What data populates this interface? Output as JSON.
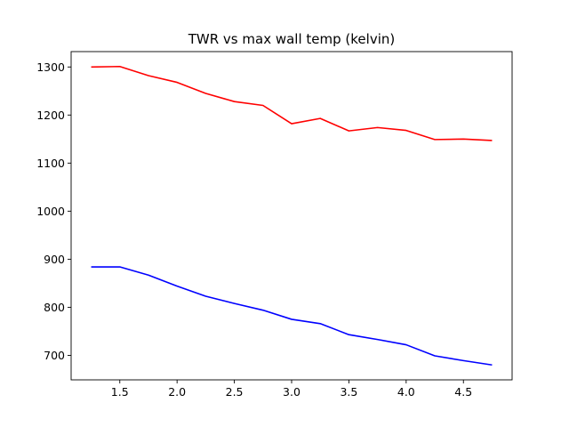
{
  "chart_data": {
    "type": "line",
    "title": "TWR vs max wall temp (kelvin)",
    "xlabel": "",
    "ylabel": "",
    "x": [
      1.25,
      1.5,
      1.75,
      2.0,
      2.25,
      2.5,
      2.75,
      3.0,
      3.25,
      3.5,
      3.75,
      4.0,
      4.25,
      4.5,
      4.75
    ],
    "series": [
      {
        "color": "#ff0000",
        "values": [
          1300,
          1301,
          1282,
          1268,
          1245,
          1228,
          1220,
          1182,
          1193,
          1167,
          1174,
          1168,
          1149,
          1150,
          1147
        ]
      },
      {
        "color": "#0000ff",
        "values": [
          884,
          884,
          867,
          844,
          823,
          808,
          794,
          775,
          766,
          743,
          733,
          722,
          699,
          689,
          680
        ]
      }
    ],
    "xlim": [
      1.075,
      4.925
    ],
    "ylim": [
      649,
      1332
    ],
    "xticks": [
      1.5,
      2.0,
      2.5,
      3.0,
      3.5,
      4.0,
      4.5
    ],
    "xtick_labels": [
      "1.5",
      "2.0",
      "2.5",
      "3.0",
      "3.5",
      "4.0",
      "4.5"
    ],
    "yticks": [
      700,
      800,
      900,
      1000,
      1100,
      1200,
      1300
    ],
    "ytick_labels": [
      "700",
      "800",
      "900",
      "1000",
      "1100",
      "1200",
      "1300"
    ],
    "grid": false,
    "legend": "none"
  }
}
